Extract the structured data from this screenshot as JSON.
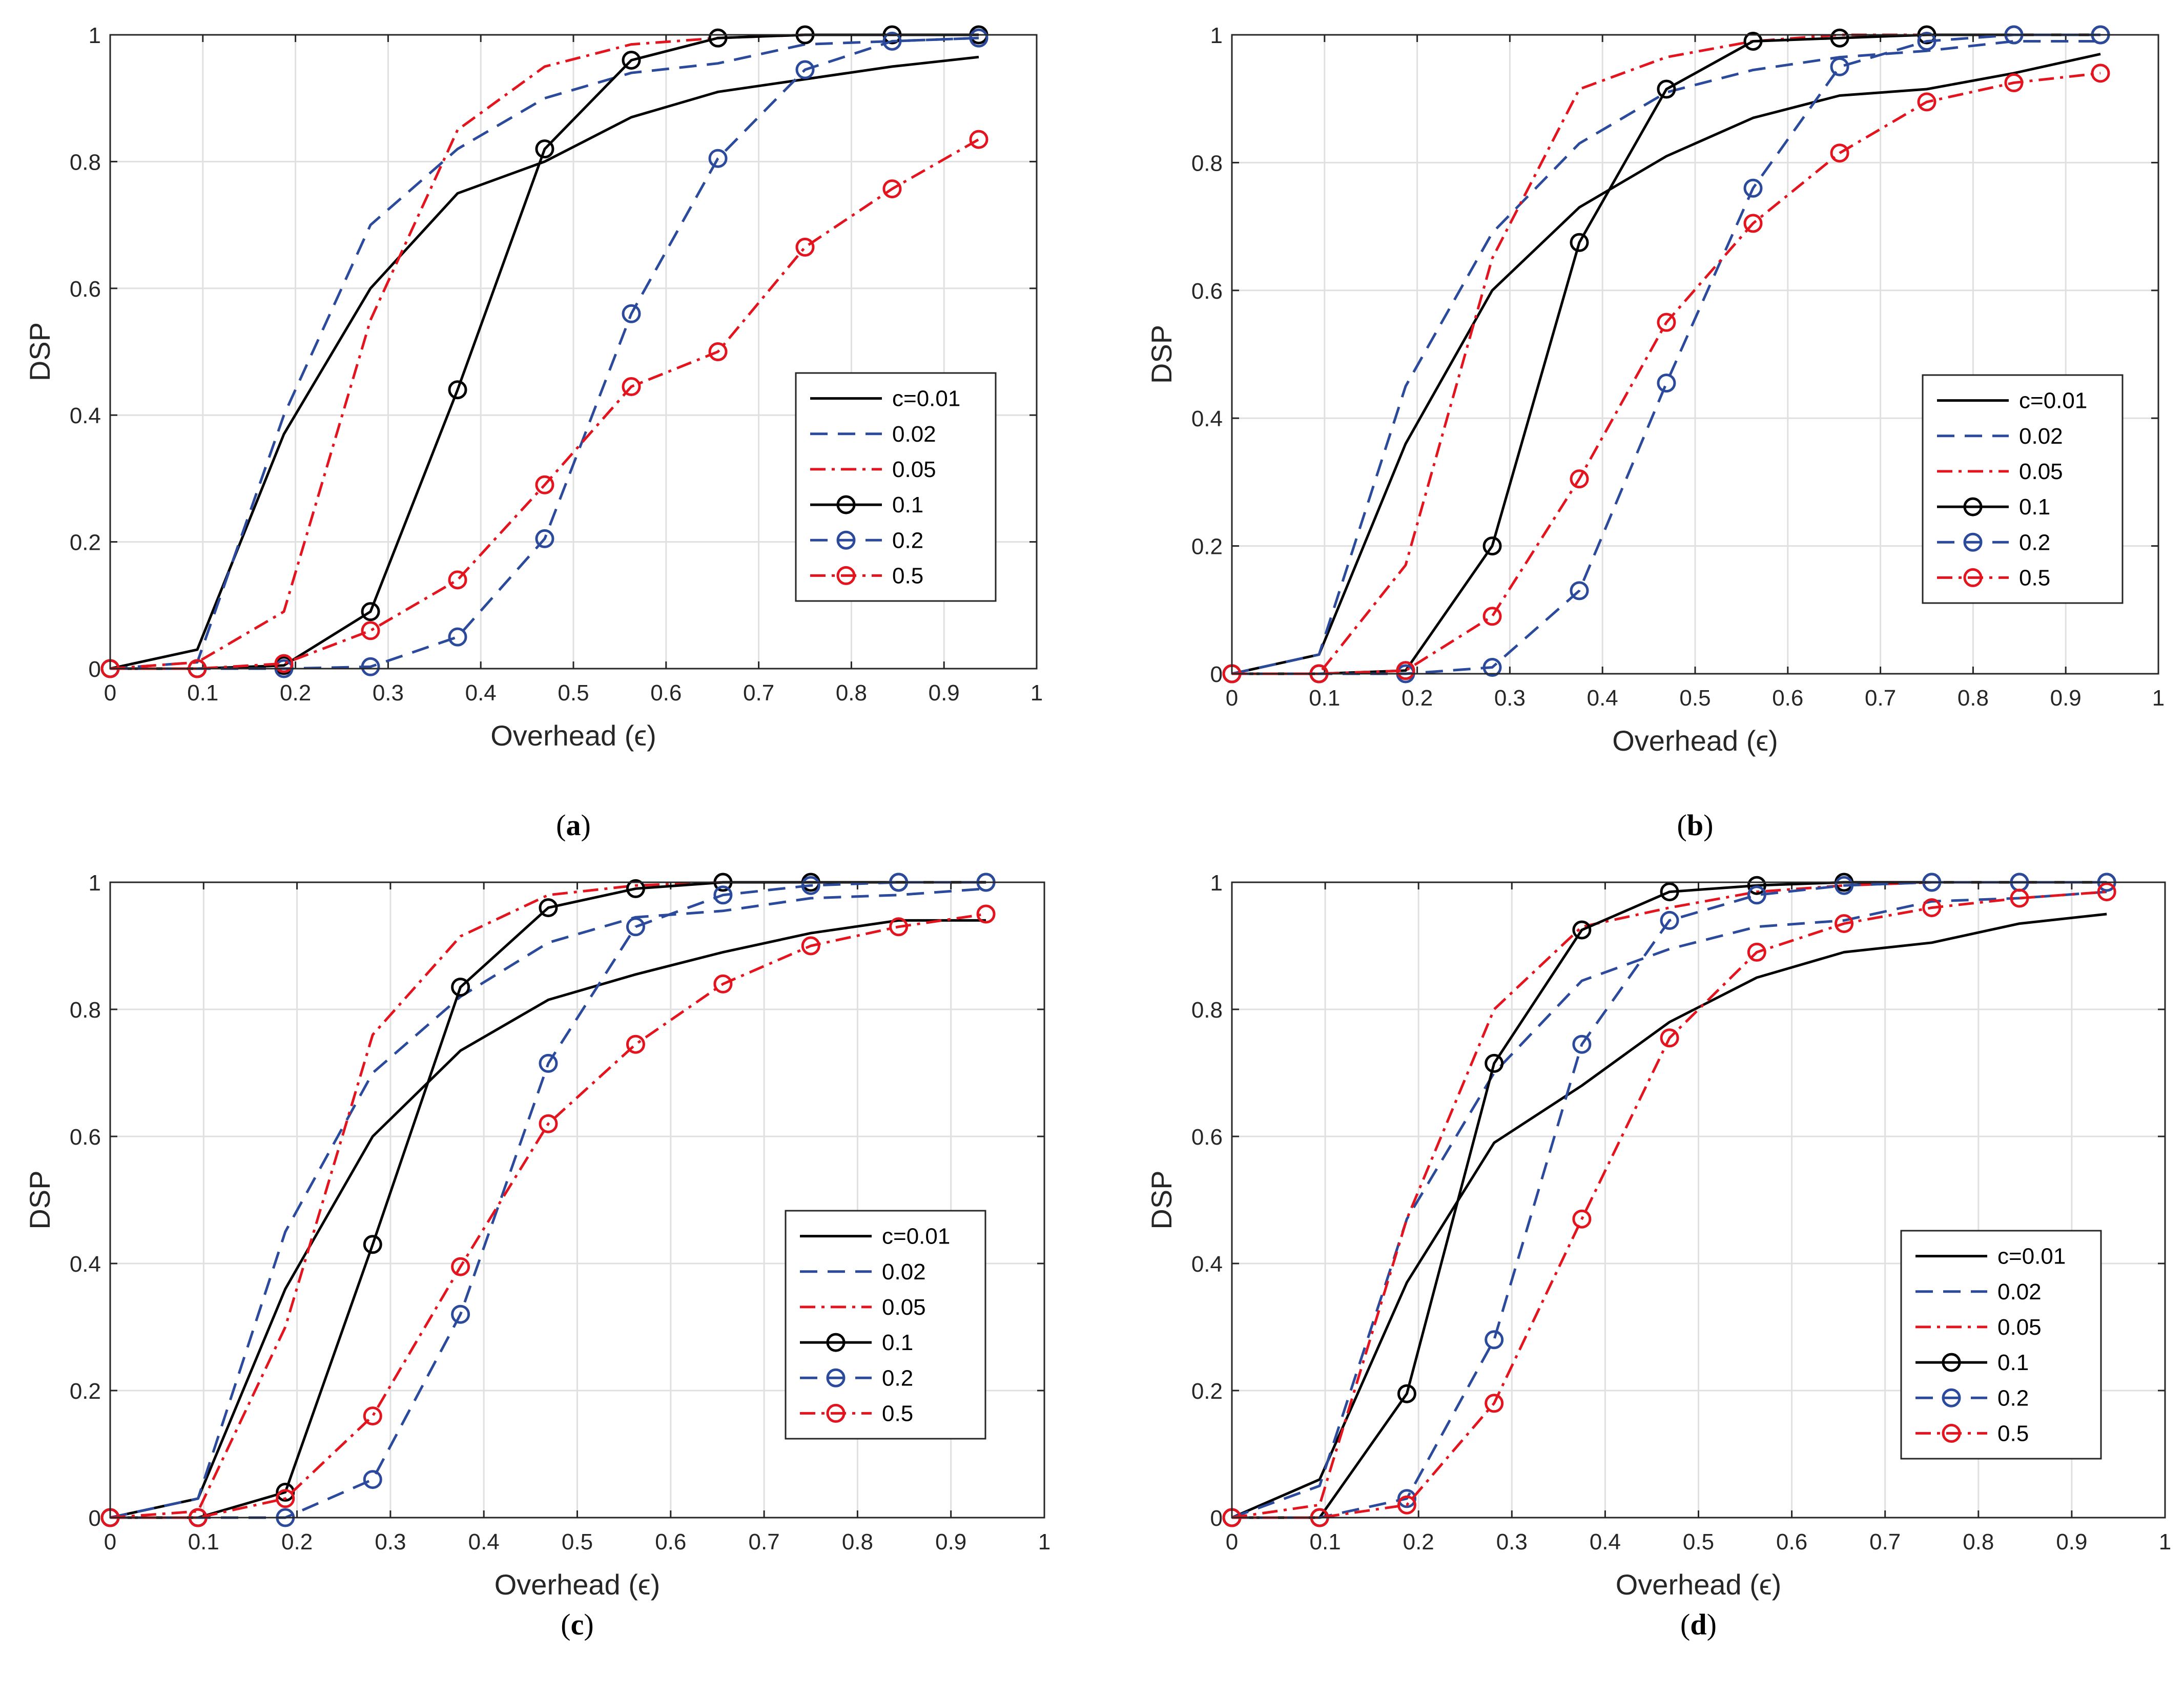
{
  "series_styles": [
    {
      "color": "#000000",
      "dash": "",
      "marker": false
    },
    {
      "color": "#2b4a9c",
      "dash": "34,20",
      "marker": false
    },
    {
      "color": "#e3141e",
      "dash": "30,12,6,12",
      "marker": false
    },
    {
      "color": "#000000",
      "dash": "",
      "marker": true
    },
    {
      "color": "#2b4a9c",
      "dash": "34,20",
      "marker": true
    },
    {
      "color": "#e3141e",
      "dash": "30,12,6,12",
      "marker": true
    }
  ],
  "chart_data": [
    {
      "type": "line",
      "caption": "a",
      "xlabel": "Overhead (ϵ)",
      "ylabel": "DSP",
      "xlim": [
        0,
        1
      ],
      "ylim": [
        0,
        1
      ],
      "xticks": [
        "0",
        "0.1",
        "0.2",
        "0.3",
        "0.4",
        "0.5",
        "0.6",
        "0.7",
        "0.8",
        "0.9",
        "1"
      ],
      "yticks": [
        "0",
        "0.2",
        "0.4",
        "0.6",
        "0.8",
        "1"
      ],
      "grid": true,
      "legend_position": "right",
      "x": [
        0,
        0.094,
        0.1875,
        0.281,
        0.375,
        0.469,
        0.5625,
        0.656,
        0.75,
        0.844,
        0.9375
      ],
      "series": [
        {
          "name": "c=0.01",
          "values": [
            0,
            0.03,
            0.37,
            0.6,
            0.75,
            0.8,
            0.87,
            0.91,
            0.93,
            0.95,
            0.965
          ]
        },
        {
          "name": "0.02",
          "values": [
            0,
            0.01,
            0.4,
            0.7,
            0.82,
            0.9,
            0.94,
            0.955,
            0.985,
            0.99,
            0.995
          ]
        },
        {
          "name": "0.05",
          "values": [
            0,
            0.01,
            0.09,
            0.55,
            0.85,
            0.95,
            0.985,
            0.995,
            1,
            1,
            1
          ]
        },
        {
          "name": "0.1",
          "values": [
            0,
            0,
            0.005,
            0.09,
            0.44,
            0.82,
            0.96,
            0.995,
            1,
            1,
            1
          ]
        },
        {
          "name": "0.2",
          "values": [
            0,
            0,
            0,
            0.003,
            0.05,
            0.205,
            0.56,
            0.805,
            0.945,
            0.99,
            0.995
          ]
        },
        {
          "name": "0.5",
          "values": [
            0,
            0,
            0.008,
            0.06,
            0.14,
            0.29,
            0.445,
            0.5,
            0.665,
            0.757,
            0.835
          ]
        }
      ]
    },
    {
      "type": "line",
      "caption": "b",
      "xlabel": "Overhead (ϵ)",
      "ylabel": "DSP",
      "xlim": [
        0,
        1
      ],
      "ylim": [
        0,
        1
      ],
      "xticks": [
        "0",
        "0.1",
        "0.2",
        "0.3",
        "0.4",
        "0.5",
        "0.6",
        "0.7",
        "0.8",
        "0.9",
        "1"
      ],
      "yticks": [
        "0",
        "0.2",
        "0.4",
        "0.6",
        "0.8",
        "1"
      ],
      "grid": true,
      "legend_position": "right",
      "x": [
        0,
        0.094,
        0.1875,
        0.281,
        0.375,
        0.469,
        0.5625,
        0.656,
        0.75,
        0.844,
        0.9375
      ],
      "series": [
        {
          "name": "c=0.01",
          "values": [
            0,
            0.03,
            0.36,
            0.6,
            0.73,
            0.81,
            0.87,
            0.905,
            0.915,
            0.94,
            0.97
          ]
        },
        {
          "name": "0.02",
          "values": [
            0,
            0.03,
            0.45,
            0.69,
            0.83,
            0.91,
            0.945,
            0.965,
            0.975,
            0.99,
            0.99
          ]
        },
        {
          "name": "0.05",
          "values": [
            0,
            0,
            0.17,
            0.65,
            0.915,
            0.965,
            0.99,
            1,
            1,
            1,
            1
          ]
        },
        {
          "name": "0.1",
          "values": [
            0,
            0,
            0.005,
            0.2,
            0.675,
            0.915,
            0.99,
            0.995,
            1,
            1,
            1
          ]
        },
        {
          "name": "0.2",
          "values": [
            0,
            0,
            0,
            0.01,
            0.13,
            0.455,
            0.76,
            0.95,
            0.99,
            1,
            1
          ]
        },
        {
          "name": "0.5",
          "values": [
            0,
            0,
            0.005,
            0.09,
            0.305,
            0.55,
            0.705,
            0.815,
            0.895,
            0.925,
            0.94
          ]
        }
      ]
    },
    {
      "type": "line",
      "caption": "c",
      "xlabel": "Overhead (ϵ)",
      "ylabel": "DSP",
      "xlim": [
        0,
        1
      ],
      "ylim": [
        0,
        1
      ],
      "xticks": [
        "0",
        "0.1",
        "0.2",
        "0.3",
        "0.4",
        "0.5",
        "0.6",
        "0.7",
        "0.8",
        "0.9",
        "1"
      ],
      "yticks": [
        "0",
        "0.2",
        "0.4",
        "0.6",
        "0.8",
        "1"
      ],
      "grid": true,
      "legend_position": "right",
      "x": [
        0,
        0.094,
        0.1875,
        0.281,
        0.375,
        0.469,
        0.5625,
        0.656,
        0.75,
        0.844,
        0.9375
      ],
      "series": [
        {
          "name": "c=0.01",
          "values": [
            0,
            0.03,
            0.36,
            0.6,
            0.735,
            0.815,
            0.855,
            0.89,
            0.92,
            0.94,
            0.94
          ]
        },
        {
          "name": "0.02",
          "values": [
            0,
            0.03,
            0.45,
            0.7,
            0.82,
            0.905,
            0.945,
            0.955,
            0.975,
            0.98,
            0.99
          ]
        },
        {
          "name": "0.05",
          "values": [
            0,
            0.01,
            0.3,
            0.76,
            0.915,
            0.98,
            0.995,
            1,
            1,
            1,
            1
          ]
        },
        {
          "name": "0.1",
          "values": [
            0,
            0,
            0.04,
            0.43,
            0.835,
            0.96,
            0.99,
            1,
            1,
            1,
            1
          ]
        },
        {
          "name": "0.2",
          "values": [
            0,
            0,
            0,
            0.06,
            0.32,
            0.715,
            0.93,
            0.98,
            0.995,
            1,
            1
          ]
        },
        {
          "name": "0.5",
          "values": [
            0,
            0,
            0.03,
            0.16,
            0.395,
            0.62,
            0.745,
            0.84,
            0.9,
            0.93,
            0.95
          ]
        }
      ]
    },
    {
      "type": "line",
      "caption": "d",
      "xlabel": "Overhead (ϵ)",
      "ylabel": "DSP",
      "xlim": [
        0,
        1
      ],
      "ylim": [
        0,
        1
      ],
      "xticks": [
        "0",
        "0.1",
        "0.2",
        "0.3",
        "0.4",
        "0.5",
        "0.6",
        "0.7",
        "0.8",
        "0.9",
        "1"
      ],
      "yticks": [
        "0",
        "0.2",
        "0.4",
        "0.6",
        "0.8",
        "1"
      ],
      "grid": true,
      "legend_position": "lower right",
      "x": [
        0,
        0.094,
        0.1875,
        0.281,
        0.375,
        0.469,
        0.5625,
        0.656,
        0.75,
        0.844,
        0.9375
      ],
      "series": [
        {
          "name": "c=0.01",
          "values": [
            0,
            0.06,
            0.37,
            0.59,
            0.68,
            0.78,
            0.85,
            0.89,
            0.905,
            0.935,
            0.95
          ]
        },
        {
          "name": "0.02",
          "values": [
            0,
            0.05,
            0.47,
            0.7,
            0.845,
            0.895,
            0.93,
            0.94,
            0.97,
            0.975,
            0.985
          ]
        },
        {
          "name": "0.05",
          "values": [
            0,
            0.02,
            0.47,
            0.8,
            0.93,
            0.96,
            0.985,
            0.995,
            1,
            1,
            1
          ]
        },
        {
          "name": "0.1",
          "values": [
            0,
            0,
            0.195,
            0.715,
            0.925,
            0.985,
            0.995,
            1,
            1,
            1,
            1
          ]
        },
        {
          "name": "0.2",
          "values": [
            0,
            0,
            0.03,
            0.28,
            0.745,
            0.94,
            0.98,
            0.995,
            1,
            1,
            1
          ]
        },
        {
          "name": "0.5",
          "values": [
            0,
            0,
            0.02,
            0.18,
            0.47,
            0.755,
            0.89,
            0.935,
            0.96,
            0.975,
            0.985
          ]
        }
      ]
    }
  ]
}
